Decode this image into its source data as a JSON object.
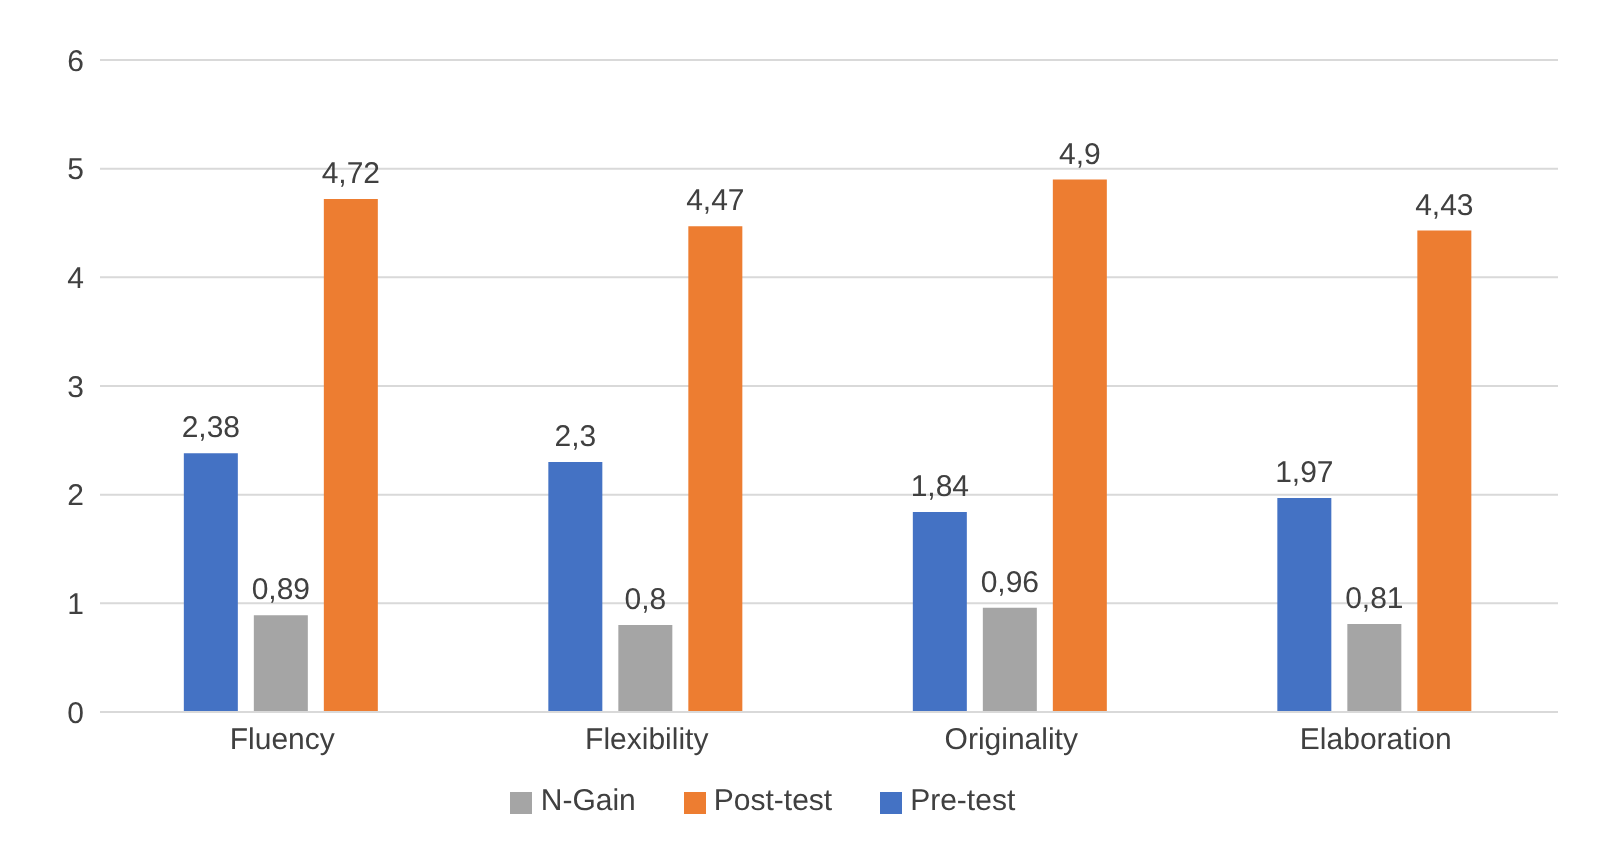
{
  "chart_data": {
    "type": "bar",
    "categories": [
      "Fluency",
      "Flexibility",
      "Originality",
      "Elaboration"
    ],
    "series": [
      {
        "name": "Pre-test",
        "color": "#4472c4",
        "values": [
          2.38,
          2.3,
          1.84,
          1.97
        ],
        "value_labels": [
          "2,38",
          "2,3",
          "1,84",
          "1,97"
        ]
      },
      {
        "name": "N-Gain",
        "color": "#a5a5a5",
        "values": [
          0.89,
          0.8,
          0.96,
          0.81
        ],
        "value_labels": [
          "0,89",
          "0,8",
          "0,96",
          "0,81"
        ]
      },
      {
        "name": "Post-test",
        "color": "#ed7d31",
        "values": [
          4.72,
          4.47,
          4.9,
          4.43
        ],
        "value_labels": [
          "4,72",
          "4,47",
          "4,9",
          "4,43"
        ]
      }
    ],
    "ylim": [
      0,
      6
    ],
    "yticks": [
      0,
      1,
      2,
      3,
      4,
      5,
      6
    ],
    "grid": "y",
    "legend": "bottom"
  }
}
